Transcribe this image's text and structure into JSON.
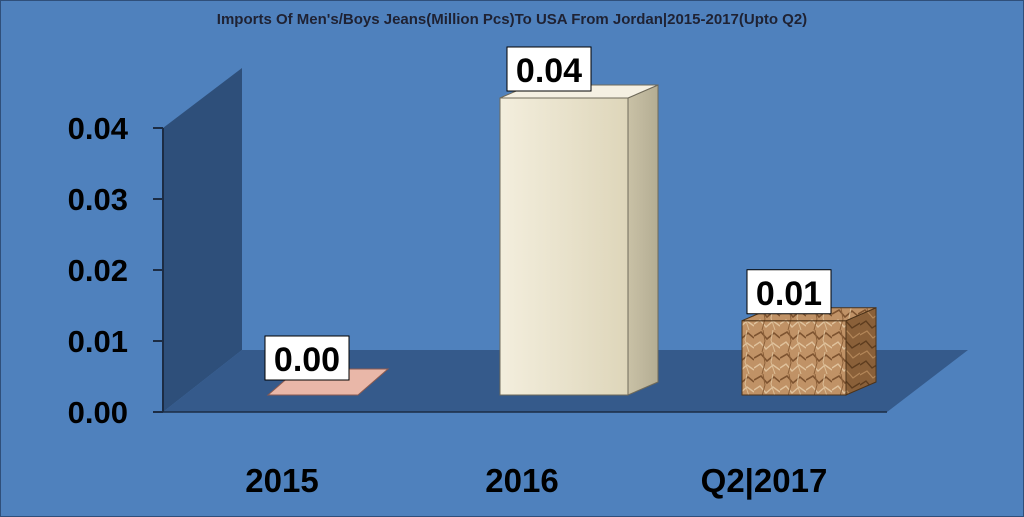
{
  "chart_data": {
    "type": "bar",
    "title": "Imports Of Men's/Boys Jeans(Million Pcs)To USA From Jordan|2015-2017(Upto Q2)",
    "categories": [
      "2015",
      "2016",
      "Q2|2017"
    ],
    "values": [
      0.0,
      0.04,
      0.01
    ],
    "data_labels": [
      "0.00",
      "0.04",
      "0.01"
    ],
    "yticks": [
      "0.00",
      "0.01",
      "0.02",
      "0.03",
      "0.04"
    ],
    "ylim": [
      0,
      0.04
    ],
    "xlabel": "",
    "ylabel": "",
    "grid": false,
    "legend": "none",
    "three_d": true
  },
  "colors": {
    "background": "#4f81bd",
    "wall": "#2e4f7a",
    "floor": "#355a8b",
    "bar_2015": "#e9b7a8",
    "bar_2016": "#e8e1c9",
    "bar_2017": "#b8875a",
    "label_box": "#ffffff"
  }
}
